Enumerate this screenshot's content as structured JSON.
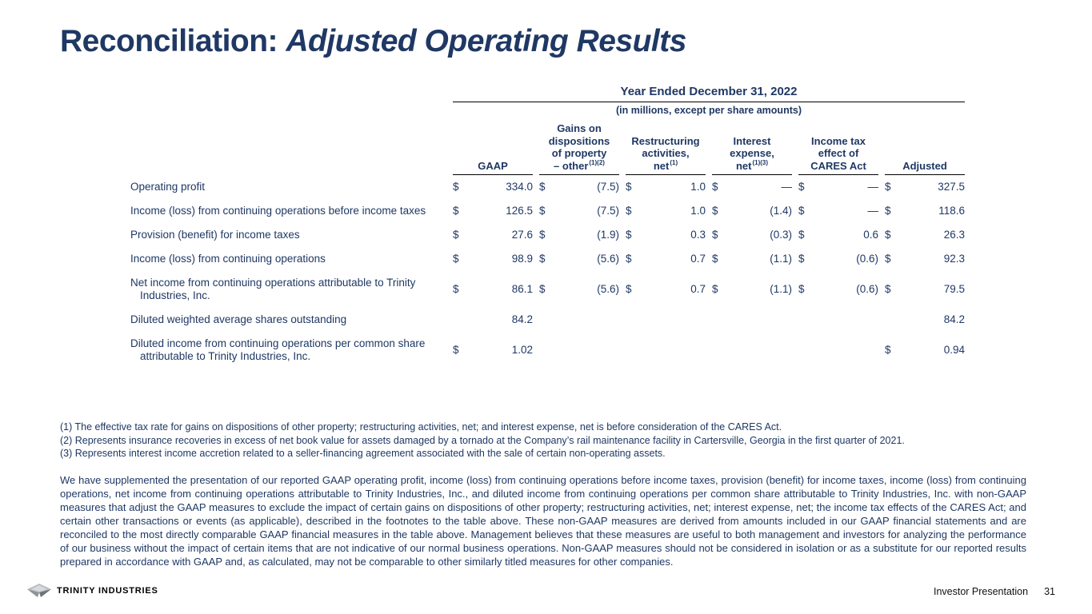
{
  "title": {
    "prefix": "Reconciliation: ",
    "emphasis": "Adjusted Operating Results"
  },
  "table": {
    "period_header": "Year Ended December 31, 2022",
    "units_note": "(in millions, except per share amounts)",
    "columns": [
      {
        "lines": [
          "GAAP"
        ],
        "sup": ""
      },
      {
        "lines": [
          "Gains on",
          "dispositions",
          "of property",
          "– other"
        ],
        "sup": "(1)(2)"
      },
      {
        "lines": [
          "Restructuring",
          "activities,",
          "net"
        ],
        "sup": "(1)"
      },
      {
        "lines": [
          "Interest",
          "expense,",
          "net"
        ],
        "sup": "(1)(3)"
      },
      {
        "lines": [
          "Income tax",
          "effect of",
          "CARES Act"
        ],
        "sup": ""
      },
      {
        "lines": [
          "Adjusted"
        ],
        "sup": ""
      }
    ],
    "rows": [
      {
        "label": "Operating profit",
        "cells": [
          {
            "d": "$",
            "v": "334.0"
          },
          {
            "d": "$",
            "v": "(7.5)"
          },
          {
            "d": "$",
            "v": "1.0"
          },
          {
            "d": "$",
            "v": "—"
          },
          {
            "d": "$",
            "v": "—"
          },
          {
            "d": "$",
            "v": "327.5"
          }
        ]
      },
      {
        "label": "Income (loss) from continuing operations before income taxes",
        "cells": [
          {
            "d": "$",
            "v": "126.5"
          },
          {
            "d": "$",
            "v": "(7.5)"
          },
          {
            "d": "$",
            "v": "1.0"
          },
          {
            "d": "$",
            "v": "(1.4)"
          },
          {
            "d": "$",
            "v": "—"
          },
          {
            "d": "$",
            "v": "118.6"
          }
        ]
      },
      {
        "label": "Provision (benefit) for income taxes",
        "cells": [
          {
            "d": "$",
            "v": "27.6"
          },
          {
            "d": "$",
            "v": "(1.9)"
          },
          {
            "d": "$",
            "v": "0.3"
          },
          {
            "d": "$",
            "v": "(0.3)"
          },
          {
            "d": "$",
            "v": "0.6"
          },
          {
            "d": "$",
            "v": "26.3"
          }
        ]
      },
      {
        "label": "Income (loss) from continuing operations",
        "cells": [
          {
            "d": "$",
            "v": "98.9"
          },
          {
            "d": "$",
            "v": "(5.6)"
          },
          {
            "d": "$",
            "v": "0.7"
          },
          {
            "d": "$",
            "v": "(1.1)"
          },
          {
            "d": "$",
            "v": "(0.6)"
          },
          {
            "d": "$",
            "v": "92.3"
          }
        ]
      },
      {
        "label": "Net income from continuing operations attributable to Trinity Industries, Inc.",
        "cells": [
          {
            "d": "$",
            "v": "86.1"
          },
          {
            "d": "$",
            "v": "(5.6)"
          },
          {
            "d": "$",
            "v": "0.7"
          },
          {
            "d": "$",
            "v": "(1.1)"
          },
          {
            "d": "$",
            "v": "(0.6)"
          },
          {
            "d": "$",
            "v": "79.5"
          }
        ]
      },
      {
        "label": "Diluted weighted average shares outstanding",
        "cells": [
          {
            "d": "",
            "v": "84.2"
          },
          {
            "d": "",
            "v": ""
          },
          {
            "d": "",
            "v": ""
          },
          {
            "d": "",
            "v": ""
          },
          {
            "d": "",
            "v": ""
          },
          {
            "d": "",
            "v": "84.2"
          }
        ]
      },
      {
        "label": "Diluted income from continuing operations per common share attributable to Trinity Industries, Inc.",
        "cells": [
          {
            "d": "$",
            "v": "1.02"
          },
          {
            "d": "",
            "v": ""
          },
          {
            "d": "",
            "v": ""
          },
          {
            "d": "",
            "v": ""
          },
          {
            "d": "",
            "v": ""
          },
          {
            "d": "$",
            "v": "0.94"
          }
        ]
      }
    ]
  },
  "footnotes": [
    "(1) The effective tax rate for gains on dispositions of other property; restructuring activities, net; and interest expense, net is before consideration of the CARES Act.",
    "(2) Represents insurance recoveries in excess of net book value for assets damaged by a tornado at the Company’s rail maintenance facility in Cartersville, Georgia in the first quarter of 2021.",
    "(3) Represents interest income accretion related to a seller-financing agreement associated with the sale of certain non-operating assets."
  ],
  "commentary": "We have supplemented the presentation of our reported GAAP operating profit, income (loss) from continuing operations before income taxes, provision (benefit) for income taxes, income (loss) from continuing operations, net income from continuing operations attributable to Trinity Industries, Inc., and diluted income from continuing operations per common share attributable to Trinity Industries, Inc. with non-GAAP measures that adjust the GAAP measures to exclude the impact of certain gains on dispositions of other property; restructuring activities, net; interest expense, net; the income tax effects of the CARES Act; and certain other transactions or events (as applicable), described in the footnotes to the table above. These non-GAAP measures are derived from amounts included in our GAAP financial statements and are reconciled to the most directly comparable GAAP financial measures in the table above. Management believes that these measures are useful to both management and investors for analyzing the performance of our business without the impact of certain items that are not indicative of our normal business operations. Non-GAAP measures should not be considered in isolation or as a substitute for our reported results prepared in accordance with GAAP and, as calculated, may not be comparable to other similarly titled measures for other companies.",
  "footer": {
    "logo_text": "TRINITY INDUSTRIES",
    "label": "Investor Presentation",
    "page_number": "31"
  },
  "colors": {
    "navy": "#1f3864",
    "rule": "#000000"
  }
}
